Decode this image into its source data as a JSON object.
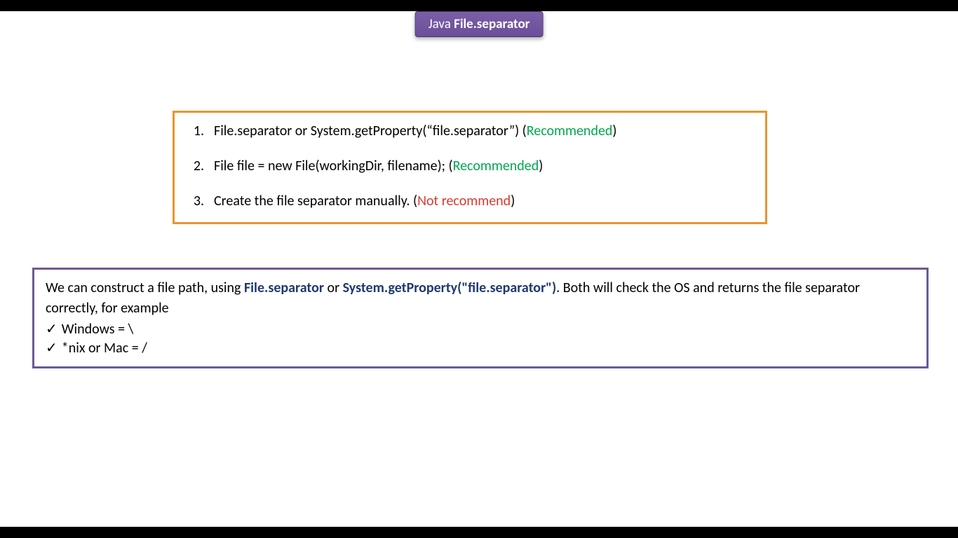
{
  "title": {
    "prefix": "Java ",
    "main": "File.separator"
  },
  "options": {
    "border_color": "#e8952e",
    "items": [
      {
        "num": "1.",
        "text_before": "File.separator or System.getProperty(“file.separator”) (",
        "status": "Recommended",
        "status_class": "recommended",
        "text_after": ")"
      },
      {
        "num": "2.",
        "text_before": "File file = new File(workingDir, filename); (",
        "status": "Recommended",
        "status_class": "recommended",
        "text_after": ")"
      },
      {
        "num": "3.",
        "text_before": "Create the file separator manually. (",
        "status": "Not recommend",
        "status_class": "not-recommended",
        "text_after": ")"
      }
    ]
  },
  "info": {
    "border_color": "#6b5a94",
    "intro_before1": "We can construct a file path, using ",
    "bold1": "File.separator",
    "intro_mid": " or ",
    "bold2": "System.getProperty(\"file.separator\")",
    "intro_after": ". Both will check the OS and returns the file separator correctly, for example",
    "checks": [
      "Windows = \\",
      "*nix or Mac = /"
    ]
  },
  "colors": {
    "title_bg": "#6b4f99",
    "recommended": "#00a84f",
    "not_recommended": "#d93a2b",
    "bold_text": "#1f3a6e",
    "black_bar": "#000000"
  }
}
